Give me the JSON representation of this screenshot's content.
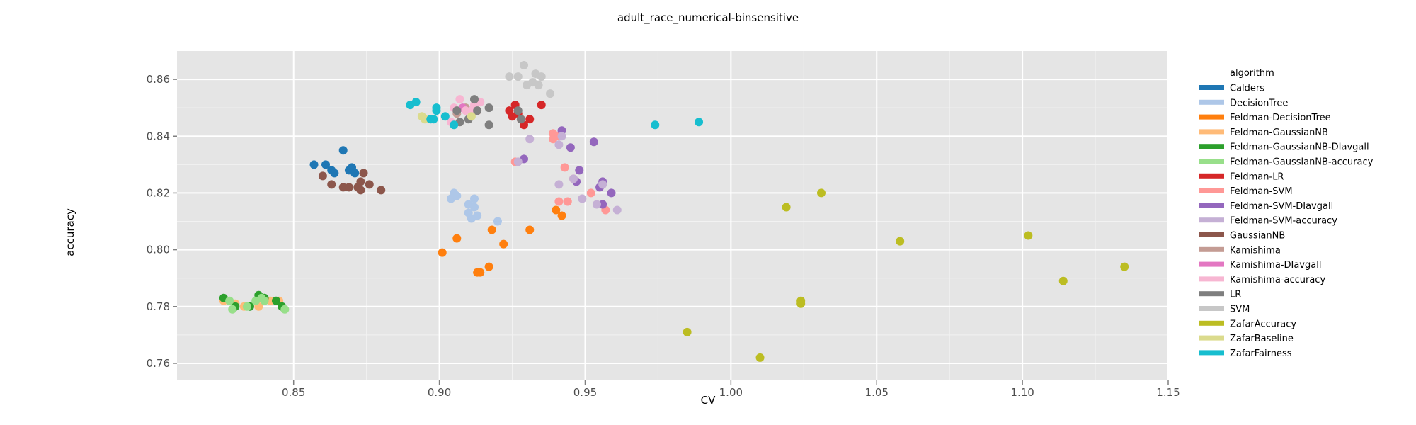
{
  "chart_data": {
    "type": "scatter",
    "title": "adult_race_numerical-binsensitive",
    "xlabel": "CV",
    "ylabel": "accuracy",
    "xlim": [
      0.81,
      1.15
    ],
    "ylim": [
      0.754,
      0.87
    ],
    "x_ticks": [
      0.85,
      0.9,
      0.95,
      1.0,
      1.05,
      1.1,
      1.15
    ],
    "x_tick_labels": [
      "0.85",
      "0.90",
      "0.95",
      "1.00",
      "1.05",
      "1.10",
      "1.15"
    ],
    "y_ticks": [
      0.76,
      0.78,
      0.8,
      0.82,
      0.84,
      0.86
    ],
    "y_tick_labels": [
      "0.76",
      "0.78",
      "0.80",
      "0.82",
      "0.84",
      "0.86"
    ],
    "grid": true,
    "legend_title": "algorithm",
    "legend_position": "right",
    "series": [
      {
        "name": "Calders",
        "color": "#1f77b4",
        "points": [
          [
            0.857,
            0.83
          ],
          [
            0.861,
            0.83
          ],
          [
            0.863,
            0.828
          ],
          [
            0.864,
            0.827
          ],
          [
            0.867,
            0.835
          ],
          [
            0.869,
            0.828
          ],
          [
            0.87,
            0.829
          ],
          [
            0.871,
            0.827
          ]
        ]
      },
      {
        "name": "DecisionTree",
        "color": "#aec7e8",
        "points": [
          [
            0.904,
            0.818
          ],
          [
            0.905,
            0.82
          ],
          [
            0.906,
            0.819
          ],
          [
            0.91,
            0.816
          ],
          [
            0.91,
            0.813
          ],
          [
            0.911,
            0.811
          ],
          [
            0.912,
            0.818
          ],
          [
            0.912,
            0.815
          ],
          [
            0.913,
            0.812
          ],
          [
            0.92,
            0.81
          ]
        ]
      },
      {
        "name": "Feldman-DecisionTree",
        "color": "#ff7f0e",
        "points": [
          [
            0.901,
            0.799
          ],
          [
            0.906,
            0.804
          ],
          [
            0.913,
            0.792
          ],
          [
            0.914,
            0.792
          ],
          [
            0.917,
            0.794
          ],
          [
            0.918,
            0.807
          ],
          [
            0.922,
            0.802
          ],
          [
            0.931,
            0.807
          ],
          [
            0.94,
            0.814
          ],
          [
            0.942,
            0.812
          ]
        ]
      },
      {
        "name": "Feldman-GaussianNB",
        "color": "#ffbb78",
        "points": [
          [
            0.826,
            0.782
          ],
          [
            0.83,
            0.781
          ],
          [
            0.833,
            0.78
          ],
          [
            0.838,
            0.78
          ],
          [
            0.842,
            0.782
          ],
          [
            0.845,
            0.782
          ]
        ]
      },
      {
        "name": "Feldman-GaussianNB-DIavgall",
        "color": "#2ca02c",
        "points": [
          [
            0.826,
            0.783
          ],
          [
            0.83,
            0.78
          ],
          [
            0.835,
            0.78
          ],
          [
            0.838,
            0.784
          ],
          [
            0.84,
            0.783
          ],
          [
            0.844,
            0.782
          ],
          [
            0.846,
            0.78
          ]
        ]
      },
      {
        "name": "Feldman-GaussianNB-accuracy",
        "color": "#98df8a",
        "points": [
          [
            0.828,
            0.782
          ],
          [
            0.829,
            0.779
          ],
          [
            0.834,
            0.78
          ],
          [
            0.837,
            0.782
          ],
          [
            0.839,
            0.783
          ],
          [
            0.84,
            0.782
          ],
          [
            0.847,
            0.779
          ]
        ]
      },
      {
        "name": "Feldman-LR",
        "color": "#d62728",
        "points": [
          [
            0.913,
            0.849
          ],
          [
            0.924,
            0.849
          ],
          [
            0.925,
            0.847
          ],
          [
            0.926,
            0.851
          ],
          [
            0.927,
            0.848
          ],
          [
            0.928,
            0.846
          ],
          [
            0.929,
            0.844
          ],
          [
            0.931,
            0.846
          ],
          [
            0.935,
            0.851
          ]
        ]
      },
      {
        "name": "Feldman-SVM",
        "color": "#ff9896",
        "points": [
          [
            0.926,
            0.831
          ],
          [
            0.939,
            0.839
          ],
          [
            0.939,
            0.841
          ],
          [
            0.941,
            0.84
          ],
          [
            0.941,
            0.817
          ],
          [
            0.943,
            0.829
          ],
          [
            0.944,
            0.817
          ],
          [
            0.946,
            0.825
          ],
          [
            0.952,
            0.82
          ],
          [
            0.957,
            0.814
          ]
        ]
      },
      {
        "name": "Feldman-SVM-DIavgall",
        "color": "#9467bd",
        "points": [
          [
            0.929,
            0.832
          ],
          [
            0.942,
            0.842
          ],
          [
            0.945,
            0.836
          ],
          [
            0.947,
            0.824
          ],
          [
            0.948,
            0.828
          ],
          [
            0.953,
            0.838
          ],
          [
            0.955,
            0.822
          ],
          [
            0.956,
            0.824
          ],
          [
            0.956,
            0.816
          ],
          [
            0.959,
            0.82
          ]
        ]
      },
      {
        "name": "Feldman-SVM-accuracy",
        "color": "#c5b0d5",
        "points": [
          [
            0.927,
            0.831
          ],
          [
            0.931,
            0.839
          ],
          [
            0.941,
            0.837
          ],
          [
            0.942,
            0.84
          ],
          [
            0.941,
            0.823
          ],
          [
            0.946,
            0.825
          ],
          [
            0.949,
            0.818
          ],
          [
            0.954,
            0.816
          ],
          [
            0.956,
            0.823
          ],
          [
            0.961,
            0.814
          ]
        ]
      },
      {
        "name": "GaussianNB",
        "color": "#8c564b",
        "points": [
          [
            0.86,
            0.826
          ],
          [
            0.863,
            0.823
          ],
          [
            0.867,
            0.822
          ],
          [
            0.869,
            0.822
          ],
          [
            0.872,
            0.822
          ],
          [
            0.873,
            0.824
          ],
          [
            0.873,
            0.821
          ],
          [
            0.874,
            0.827
          ],
          [
            0.876,
            0.823
          ],
          [
            0.88,
            0.821
          ]
        ]
      },
      {
        "name": "Kamishima",
        "color": "#c49c94",
        "points": [
          [
            0.906,
            0.848
          ],
          [
            0.909,
            0.85
          ]
        ]
      },
      {
        "name": "Kamishima-DIavgall",
        "color": "#e377c2",
        "points": [
          [
            0.908,
            0.85
          ],
          [
            0.911,
            0.849
          ]
        ]
      },
      {
        "name": "Kamishima-accuracy",
        "color": "#f7b6d2",
        "points": [
          [
            0.904,
            0.845
          ],
          [
            0.905,
            0.85
          ],
          [
            0.907,
            0.853
          ],
          [
            0.909,
            0.849
          ],
          [
            0.911,
            0.849
          ],
          [
            0.912,
            0.851
          ],
          [
            0.914,
            0.852
          ]
        ]
      },
      {
        "name": "LR",
        "color": "#7f7f7f",
        "points": [
          [
            0.906,
            0.849
          ],
          [
            0.907,
            0.845
          ],
          [
            0.91,
            0.846
          ],
          [
            0.912,
            0.853
          ],
          [
            0.913,
            0.849
          ],
          [
            0.917,
            0.85
          ],
          [
            0.917,
            0.844
          ],
          [
            0.927,
            0.849
          ],
          [
            0.928,
            0.846
          ]
        ]
      },
      {
        "name": "SVM",
        "color": "#c7c7c7",
        "points": [
          [
            0.924,
            0.861
          ],
          [
            0.927,
            0.861
          ],
          [
            0.929,
            0.865
          ],
          [
            0.93,
            0.858
          ],
          [
            0.932,
            0.859
          ],
          [
            0.933,
            0.862
          ],
          [
            0.934,
            0.858
          ],
          [
            0.935,
            0.861
          ],
          [
            0.938,
            0.855
          ]
        ]
      },
      {
        "name": "ZafarAccuracy",
        "color": "#bcbd22",
        "points": [
          [
            0.985,
            0.771
          ],
          [
            1.01,
            0.762
          ],
          [
            1.019,
            0.815
          ],
          [
            1.024,
            0.782
          ],
          [
            1.024,
            0.781
          ],
          [
            1.031,
            0.82
          ],
          [
            1.058,
            0.803
          ],
          [
            1.102,
            0.805
          ],
          [
            1.114,
            0.789
          ],
          [
            1.135,
            0.794
          ]
        ]
      },
      {
        "name": "ZafarBaseline",
        "color": "#dbdb8d",
        "points": [
          [
            0.894,
            0.847
          ],
          [
            0.895,
            0.846
          ],
          [
            0.911,
            0.847
          ]
        ]
      },
      {
        "name": "ZafarFairness",
        "color": "#17becf",
        "points": [
          [
            0.89,
            0.851
          ],
          [
            0.892,
            0.852
          ],
          [
            0.897,
            0.846
          ],
          [
            0.898,
            0.846
          ],
          [
            0.899,
            0.85
          ],
          [
            0.899,
            0.849
          ],
          [
            0.902,
            0.847
          ],
          [
            0.905,
            0.844
          ],
          [
            0.974,
            0.844
          ],
          [
            0.989,
            0.845
          ]
        ]
      }
    ]
  }
}
